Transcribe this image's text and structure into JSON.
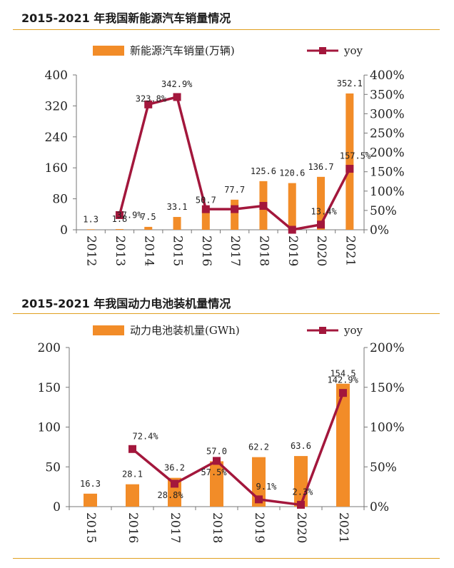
{
  "colors": {
    "bar": "#F28C28",
    "line": "#A3173C",
    "rule": "#E0A020"
  },
  "chart_data": [
    {
      "type": "bar",
      "title": "2015-2021 年我国新能源汽车销量情况",
      "categories": [
        "2012",
        "2013",
        "2014",
        "2015",
        "2016",
        "2017",
        "2018",
        "2019",
        "2020",
        "2021"
      ],
      "tick_labels": [
        "2012",
        "2013",
        "2014",
        "2015",
        "2016",
        "2017",
        "2018",
        "2019",
        "2020",
        "2021"
      ],
      "series": [
        {
          "name": "新能源汽车销量(万辆)",
          "type": "bar",
          "axis": "left",
          "values": [
            1.3,
            1.8,
            7.5,
            33.1,
            50.7,
            77.7,
            125.6,
            120.6,
            136.7,
            352.1
          ],
          "labels": [
            "1.3",
            "1.8",
            "7.5",
            "33.1",
            "50.7",
            "77.7",
            "125.6",
            "120.6",
            "136.7",
            "352.1"
          ]
        },
        {
          "name": "yoy",
          "type": "line",
          "axis": "right",
          "values": [
            null,
            37.9,
            323.8,
            342.9,
            53.2,
            53.3,
            61.7,
            -4.0,
            13.4,
            157.5
          ],
          "labels": [
            "",
            "37.9%",
            "323.8%",
            "342.9%",
            "",
            "",
            "",
            "",
            "13.4%",
            "157.5%"
          ]
        }
      ],
      "yticks_left": [
        "0",
        "80",
        "160",
        "240",
        "320",
        "400"
      ],
      "yticks_right": [
        "0%",
        "50%",
        "100%",
        "150%",
        "200%",
        "250%",
        "300%",
        "350%",
        "400%"
      ],
      "ylim_left": [
        0,
        400
      ],
      "ylim_right": [
        0,
        400
      ],
      "legend": "top"
    },
    {
      "type": "bar",
      "title": "2015-2021 年我国动力电池装机量情况",
      "categories": [
        "2015",
        "2016",
        "2017",
        "2018",
        "2019",
        "2020",
        "2021"
      ],
      "tick_labels": [
        "2015",
        "2016",
        "2017",
        "2018",
        "2019",
        "2020",
        "2021"
      ],
      "series": [
        {
          "name": "动力电池装机量(GWh)",
          "type": "bar",
          "axis": "left",
          "values": [
            16.3,
            28.1,
            36.2,
            57.0,
            62.2,
            63.6,
            154.5
          ],
          "labels": [
            "16.3",
            "28.1",
            "36.2",
            "57.0",
            "62.2",
            "63.6",
            "154.5"
          ]
        },
        {
          "name": "yoy",
          "type": "line",
          "axis": "right",
          "values": [
            null,
            72.4,
            28.8,
            57.5,
            9.1,
            2.3,
            142.9
          ],
          "labels": [
            "",
            "72.4%",
            "28.8%",
            "57.5%",
            "9.1%",
            "2.3%",
            "142.9%"
          ]
        }
      ],
      "yticks_left": [
        "0",
        "50",
        "100",
        "150",
        "200"
      ],
      "yticks_right": [
        "0%",
        "50%",
        "100%",
        "150%",
        "200%"
      ],
      "ylim_left": [
        0,
        200
      ],
      "ylim_right": [
        0,
        200
      ],
      "legend": "top"
    }
  ]
}
